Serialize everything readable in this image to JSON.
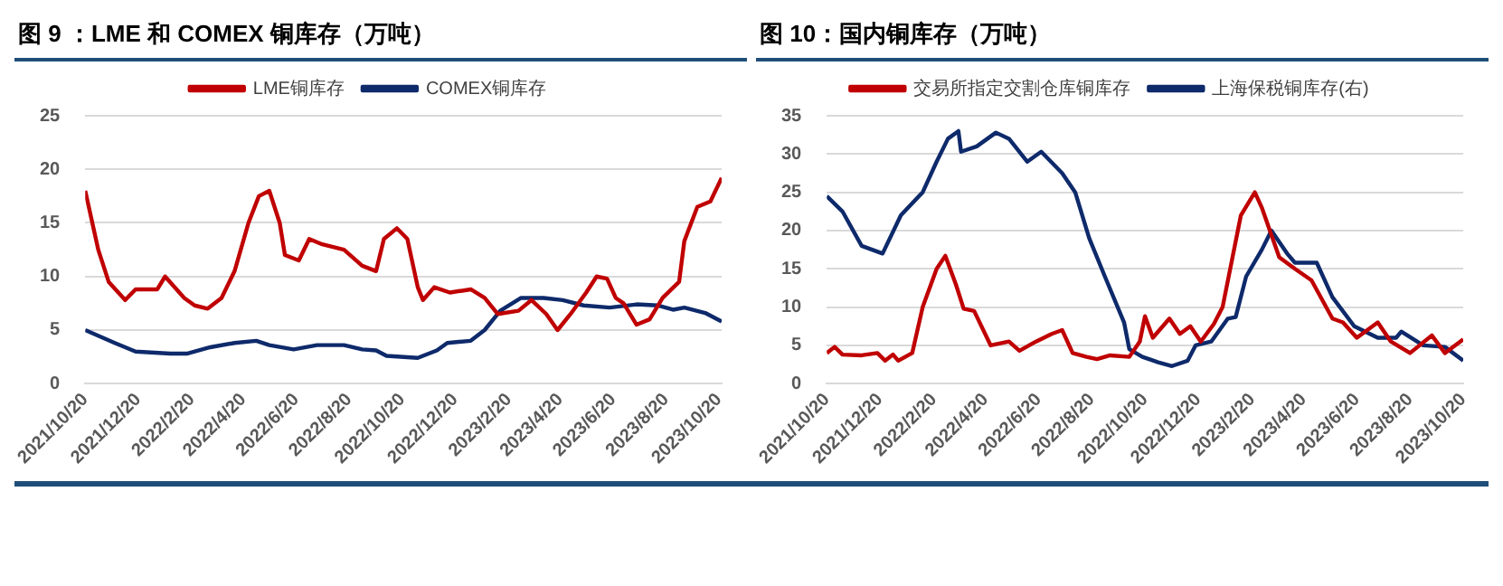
{
  "chart_data": [
    {
      "type": "line",
      "title": "图 9 ：LME 和 COMEX 铜库存（万吨）",
      "legend": "top",
      "grid": "y",
      "marker": "none",
      "line_style": "solid",
      "xlim": [
        "2021-10-20",
        "2023-10-23"
      ],
      "ylim": [
        0,
        25
      ],
      "yticks": [
        0,
        5,
        10,
        15,
        20,
        25
      ],
      "xticks": [
        {
          "value": "2021-10-20",
          "label": "2021/10/20"
        },
        {
          "value": "2021-12-20",
          "label": "2021/12/20"
        },
        {
          "value": "2022-02-20",
          "label": "2022/2/20"
        },
        {
          "value": "2022-04-20",
          "label": "2022/4/20"
        },
        {
          "value": "2022-06-20",
          "label": "2022/6/20"
        },
        {
          "value": "2022-08-20",
          "label": "2022/8/20"
        },
        {
          "value": "2022-10-20",
          "label": "2022/10/20"
        },
        {
          "value": "2022-12-20",
          "label": "2022/12/20"
        },
        {
          "value": "2023-02-20",
          "label": "2023/2/20"
        },
        {
          "value": "2023-04-20",
          "label": "2023/4/20"
        },
        {
          "value": "2023-06-20",
          "label": "2023/6/20"
        },
        {
          "value": "2023-08-20",
          "label": "2023/8/20"
        },
        {
          "value": "2023-10-20",
          "label": "2023/10/20"
        }
      ],
      "series": [
        {
          "name": "LME铜库存",
          "color": "#c00000",
          "x": [
            "2021-10-20",
            "2021-11-04",
            "2021-11-16",
            "2021-12-05",
            "2021-12-17",
            "2022-01-11",
            "2022-01-20",
            "2022-02-11",
            "2022-02-23",
            "2022-03-10",
            "2022-03-26",
            "2022-04-10",
            "2022-04-26",
            "2022-05-08",
            "2022-05-20",
            "2022-06-01",
            "2022-06-07",
            "2022-06-23",
            "2022-07-05",
            "2022-07-20",
            "2022-08-14",
            "2022-09-04",
            "2022-09-20",
            "2022-09-29",
            "2022-10-14",
            "2022-10-26",
            "2022-11-07",
            "2022-11-13",
            "2022-11-26",
            "2022-12-14",
            "2023-01-07",
            "2023-01-23",
            "2023-02-07",
            "2023-03-03",
            "2023-03-18",
            "2023-04-04",
            "2023-04-17",
            "2023-05-02",
            "2023-05-20",
            "2023-06-01",
            "2023-06-13",
            "2023-06-23",
            "2023-07-02",
            "2023-07-17",
            "2023-08-01",
            "2023-08-16",
            "2023-09-04",
            "2023-09-10",
            "2023-09-25",
            "2023-10-10",
            "2023-10-23"
          ],
          "values": [
            18,
            12.5,
            9.5,
            7.8,
            8.8,
            8.8,
            10,
            8,
            7.3,
            7,
            8,
            10.5,
            15,
            17.5,
            18,
            15,
            12,
            11.5,
            13.5,
            13,
            12.5,
            11,
            10.5,
            13.5,
            14.5,
            13.5,
            9,
            7.8,
            9,
            8.5,
            8.8,
            8,
            6.5,
            6.8,
            7.8,
            6.5,
            5,
            6.5,
            8.5,
            10,
            9.8,
            8,
            7.5,
            5.5,
            6,
            8,
            9.5,
            13.3,
            16.5,
            17,
            19.2
          ]
        },
        {
          "name": "COMEX铜库存",
          "color": "#0e2a6b",
          "x": [
            "2021-10-20",
            "2021-11-23",
            "2021-12-17",
            "2022-01-26",
            "2022-02-14",
            "2022-03-13",
            "2022-04-10",
            "2022-05-05",
            "2022-05-20",
            "2022-06-17",
            "2022-07-14",
            "2022-08-14",
            "2022-09-04",
            "2022-09-20",
            "2022-10-02",
            "2022-11-07",
            "2022-11-29",
            "2022-12-11",
            "2023-01-07",
            "2023-01-23",
            "2023-02-10",
            "2023-03-06",
            "2023-04-01",
            "2023-04-23",
            "2023-05-17",
            "2023-06-16",
            "2023-07-17",
            "2023-08-10",
            "2023-08-28",
            "2023-09-10",
            "2023-10-04",
            "2023-10-23"
          ],
          "values": [
            5,
            3.8,
            3,
            2.8,
            2.8,
            3.4,
            3.8,
            4,
            3.6,
            3.2,
            3.6,
            3.6,
            3.2,
            3.1,
            2.6,
            2.4,
            3.1,
            3.8,
            4,
            5,
            6.8,
            8,
            8,
            7.8,
            7.3,
            7.1,
            7.4,
            7.3,
            6.9,
            7.1,
            6.6,
            5.8
          ]
        }
      ]
    },
    {
      "type": "line",
      "title": "图 10：国内铜库存（万吨）",
      "legend": "top",
      "grid": "y",
      "marker": "none",
      "line_style": "solid",
      "xlim": [
        "2021-10-20",
        "2023-10-20"
      ],
      "ylim": [
        0,
        35
      ],
      "yticks": [
        0,
        5,
        10,
        15,
        20,
        25,
        30,
        35
      ],
      "xticks": [
        {
          "value": "2021-10-20",
          "label": "2021/10/20"
        },
        {
          "value": "2021-12-20",
          "label": "2021/12/20"
        },
        {
          "value": "2022-02-20",
          "label": "2022/2/20"
        },
        {
          "value": "2022-04-20",
          "label": "2022/4/20"
        },
        {
          "value": "2022-06-20",
          "label": "2022/6/20"
        },
        {
          "value": "2022-08-20",
          "label": "2022/8/20"
        },
        {
          "value": "2022-10-20",
          "label": "2022/10/20"
        },
        {
          "value": "2022-12-20",
          "label": "2022/12/20"
        },
        {
          "value": "2023-02-20",
          "label": "2023/2/20"
        },
        {
          "value": "2023-04-20",
          "label": "2023/4/20"
        },
        {
          "value": "2023-06-20",
          "label": "2023/6/20"
        },
        {
          "value": "2023-08-20",
          "label": "2023/8/20"
        },
        {
          "value": "2023-10-20",
          "label": "2023/10/20"
        }
      ],
      "series": [
        {
          "name": "交易所指定交割仓库铜库存",
          "color": "#c00000",
          "x": [
            "2021-10-20",
            "2021-10-29",
            "2021-11-07",
            "2021-11-29",
            "2021-12-17",
            "2021-12-26",
            "2022-01-04",
            "2022-01-10",
            "2022-01-26",
            "2022-02-07",
            "2022-02-23",
            "2022-03-05",
            "2022-03-17",
            "2022-03-26",
            "2022-04-07",
            "2022-04-26",
            "2022-05-17",
            "2022-05-29",
            "2022-06-17",
            "2022-07-05",
            "2022-07-17",
            "2022-07-29",
            "2022-08-14",
            "2022-08-26",
            "2022-09-10",
            "2022-10-02",
            "2022-10-14",
            "2022-10-20",
            "2022-10-29",
            "2022-11-17",
            "2022-11-29",
            "2022-12-11",
            "2022-12-23",
            "2023-01-07",
            "2023-01-17",
            "2023-02-07",
            "2023-02-23",
            "2023-03-03",
            "2023-03-23",
            "2023-04-10",
            "2023-04-29",
            "2023-05-23",
            "2023-06-04",
            "2023-06-20",
            "2023-07-14",
            "2023-07-29",
            "2023-08-20",
            "2023-09-14",
            "2023-09-29",
            "2023-10-20"
          ],
          "values": [
            4,
            4.8,
            3.8,
            3.7,
            4,
            3,
            3.8,
            3,
            4,
            10,
            15,
            16.7,
            13,
            9.8,
            9.5,
            5,
            5.5,
            4.3,
            5.5,
            6.5,
            7,
            4,
            3.5,
            3.2,
            3.7,
            3.5,
            5.5,
            8.8,
            6,
            8.5,
            6.5,
            7.5,
            5.5,
            7.8,
            10,
            22,
            25,
            23,
            16.5,
            15,
            13.5,
            8.5,
            8,
            6,
            8,
            5.5,
            4,
            6.3,
            4,
            5.8
          ]
        },
        {
          "name": "上海保税铜库存(右)",
          "color": "#0e2a6b",
          "x": [
            "2021-10-20",
            "2021-11-07",
            "2021-11-29",
            "2021-12-23",
            "2022-01-13",
            "2022-02-07",
            "2022-02-23",
            "2022-03-08",
            "2022-03-20",
            "2022-03-23",
            "2022-04-10",
            "2022-05-02",
            "2022-05-17",
            "2022-06-07",
            "2022-06-23",
            "2022-07-17",
            "2022-08-01",
            "2022-08-17",
            "2022-09-04",
            "2022-09-26",
            "2022-10-02",
            "2022-10-17",
            "2022-11-04",
            "2022-11-20",
            "2022-12-08",
            "2022-12-17",
            "2023-01-04",
            "2023-01-23",
            "2023-02-01",
            "2023-02-13",
            "2023-03-03",
            "2023-03-14",
            "2023-04-01",
            "2023-04-10",
            "2023-05-05",
            "2023-05-23",
            "2023-06-17",
            "2023-07-14",
            "2023-08-04",
            "2023-08-10",
            "2023-09-04",
            "2023-09-29",
            "2023-10-20"
          ],
          "values": [
            24.5,
            22.5,
            18,
            17,
            22,
            25,
            29,
            32,
            33,
            30.3,
            31,
            32.8,
            32,
            29,
            30.3,
            27.5,
            25,
            19,
            14,
            8,
            4.5,
            3.5,
            2.8,
            2.3,
            3,
            5,
            5.5,
            8.5,
            8.7,
            14,
            17.5,
            20,
            17,
            15.8,
            15.8,
            11.3,
            7.5,
            6,
            6,
            6.8,
            5,
            4.8,
            3
          ]
        }
      ]
    }
  ]
}
